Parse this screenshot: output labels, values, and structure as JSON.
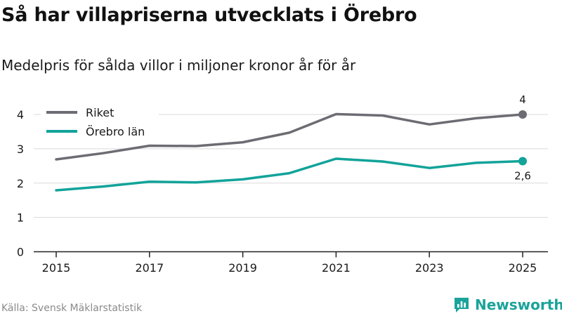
{
  "header": {
    "title": "Så har villapriserna utvecklats i Örebro",
    "subtitle": "Medelpris för sålda villor i miljoner kronor år för år"
  },
  "footer": {
    "source": "Källa: Svensk Mäklarstatistik",
    "brand": "Newsworthy",
    "brand_icon": "newsworthy-logo-icon"
  },
  "colors": {
    "riket": "#6d6c73",
    "orebro": "#12a39a",
    "grid": "#d9d9d9",
    "axis": "#222222",
    "brand": "#1aa39a"
  },
  "chart_data": {
    "type": "line",
    "title": "Så har villapriserna utvecklats i Örebro",
    "subtitle": "Medelpris för sålda villor i miljoner kronor år för år",
    "xlabel": "",
    "ylabel": "",
    "x": [
      2015,
      2016,
      2017,
      2018,
      2019,
      2020,
      2021,
      2022,
      2023,
      2024,
      2025
    ],
    "xticks": [
      2015,
      2017,
      2019,
      2021,
      2023,
      2025
    ],
    "yticks": [
      0,
      1,
      2,
      3,
      4
    ],
    "ylim": [
      0,
      4.2
    ],
    "grid": true,
    "legend_position": "top-left",
    "series": [
      {
        "name": "Riket",
        "color": "#6d6c73",
        "values": [
          2.69,
          2.87,
          3.09,
          3.08,
          3.19,
          3.47,
          4.01,
          3.97,
          3.71,
          3.89,
          4.0
        ],
        "end_label": "4",
        "end_label_position": "above"
      },
      {
        "name": "Örebro län",
        "color": "#12a39a",
        "values": [
          1.79,
          1.9,
          2.04,
          2.02,
          2.11,
          2.29,
          2.71,
          2.63,
          2.44,
          2.59,
          2.64
        ],
        "end_label": "2,6",
        "end_label_position": "below"
      }
    ]
  }
}
